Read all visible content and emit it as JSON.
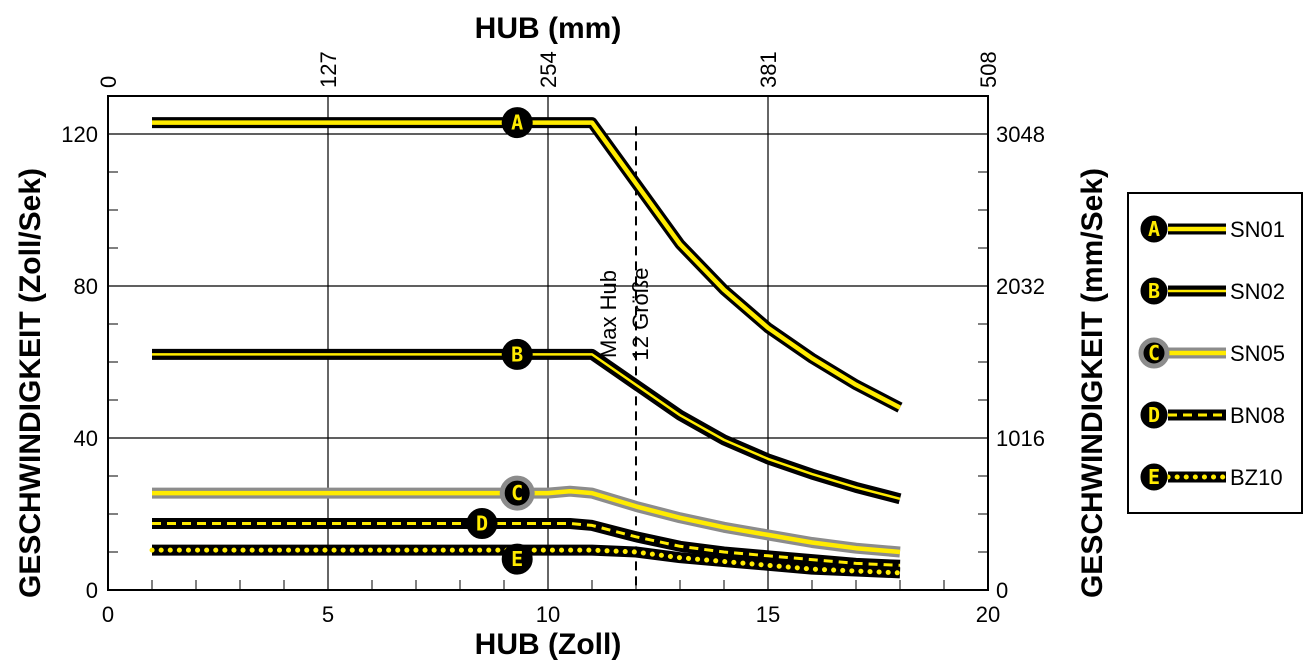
{
  "chart_data": {
    "type": "line",
    "x_axis": {
      "label": "HUB (Zoll)",
      "min": 0,
      "max": 20,
      "major_ticks": [
        0,
        5,
        10,
        15,
        20
      ]
    },
    "x2_axis": {
      "label": "HUB (mm)",
      "tick_labels": [
        "0",
        "127",
        "254",
        "381",
        "508"
      ]
    },
    "y_axis": {
      "label": "GESCHWINDIGKEIT (Zoll/Sek)",
      "min": 0,
      "max": 130,
      "major_ticks": [
        0,
        40,
        80,
        120
      ]
    },
    "y2_axis": {
      "label": "GESCHWINDIGKEIT (mm/Sek)",
      "tick_labels": [
        "0",
        "1016",
        "2032",
        "3048"
      ]
    },
    "grid": true,
    "legend_position": "right",
    "annotation": {
      "x": 12,
      "lines": [
        "Max Hub",
        "12 Größe"
      ]
    },
    "series": [
      {
        "name": "SN01",
        "marker": "A",
        "style": "yellow-black",
        "x": [
          1,
          9.3,
          11,
          12,
          13,
          14,
          15,
          16,
          17,
          18
        ],
        "y": [
          123,
          123,
          123,
          107,
          91,
          79,
          69,
          61,
          54,
          48
        ]
      },
      {
        "name": "SN02",
        "marker": "B",
        "style": "black-yellow",
        "x": [
          1,
          9.3,
          11,
          12,
          13,
          14,
          15,
          16,
          17,
          18
        ],
        "y": [
          62,
          62,
          62,
          54,
          46,
          39.5,
          34.5,
          30.5,
          27,
          24
        ]
      },
      {
        "name": "SN05",
        "marker": "C",
        "style": "yellow-gray",
        "x": [
          1,
          9.3,
          10,
          10.5,
          11,
          12,
          13,
          14,
          15,
          16,
          17,
          18
        ],
        "y": [
          25.5,
          25.5,
          25.5,
          26,
          25.5,
          22,
          19,
          16.5,
          14.5,
          12.5,
          11,
          10
        ]
      },
      {
        "name": "BN08",
        "marker": "D",
        "style": "dashed",
        "x": [
          1,
          8.5,
          10.5,
          11,
          12,
          13,
          14,
          15,
          16,
          17,
          18
        ],
        "y": [
          17.5,
          17.5,
          17.5,
          17,
          14,
          11.5,
          10,
          9,
          8,
          7,
          6.5
        ]
      },
      {
        "name": "BZ10",
        "marker": "E",
        "style": "dotted",
        "x": [
          1,
          9.3,
          11,
          12,
          13,
          14,
          15,
          16,
          17,
          18
        ],
        "y": [
          10.5,
          10.5,
          10.5,
          10,
          8.5,
          7.5,
          6.5,
          5.5,
          5,
          4.5
        ]
      }
    ]
  }
}
